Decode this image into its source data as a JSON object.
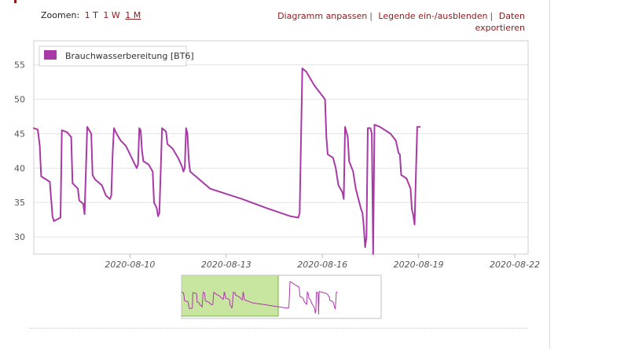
{
  "zoom": {
    "label": "Zoomen:",
    "options": [
      {
        "label": "1 T",
        "active": false
      },
      {
        "label": "1 W",
        "active": false
      },
      {
        "label": "1 M",
        "active": true
      }
    ]
  },
  "actions": {
    "customize": "Diagramm anpassen",
    "toggle_legend": "Legende ein-/ausblenden",
    "export_line1": "Daten",
    "export_line2": "exportieren",
    "separator": "|"
  },
  "colors": {
    "series": "#a83aa8",
    "navigator_mask": "#c8e6a0",
    "navigator_mask_border": "#7cb342",
    "link": "#8b1a1a"
  },
  "chart_data": {
    "type": "line",
    "legend": {
      "entries": [
        "Brauchwasserbereitung [BT6]"
      ],
      "placement": "top-left"
    },
    "xlim": [
      "2020-08-07",
      "2020-08-22 10:00"
    ],
    "ylim": [
      27.5,
      58.5
    ],
    "x_ticks": [
      "2020-08-10",
      "2020-08-13",
      "2020-08-16",
      "2020-08-19",
      "2020-08-22"
    ],
    "y_ticks": [
      30,
      35,
      40,
      45,
      50,
      55
    ],
    "grid": {
      "horizontal": true,
      "vertical": false
    },
    "series": [
      {
        "name": "Brauchwasserbereitung [BT6]",
        "points": [
          [
            "2020-08-07 00:00",
            45.8
          ],
          [
            "2020-08-07 03:00",
            45.6
          ],
          [
            "2020-08-07 04:30",
            43.2
          ],
          [
            "2020-08-07 05:30",
            38.8
          ],
          [
            "2020-08-07 12:00",
            38.0
          ],
          [
            "2020-08-07 13:00",
            35.5
          ],
          [
            "2020-08-07 14:00",
            33.0
          ],
          [
            "2020-08-07 15:00",
            32.3
          ],
          [
            "2020-08-07 20:00",
            32.8
          ],
          [
            "2020-08-07 21:00",
            45.5
          ],
          [
            "2020-08-08 01:00",
            45.2
          ],
          [
            "2020-08-08 04:00",
            44.5
          ],
          [
            "2020-08-08 05:00",
            37.8
          ],
          [
            "2020-08-08 09:00",
            37.0
          ],
          [
            "2020-08-08 10:00",
            35.3
          ],
          [
            "2020-08-08 13:00",
            34.8
          ],
          [
            "2020-08-08 14:00",
            33.3
          ],
          [
            "2020-08-08 16:00",
            46.0
          ],
          [
            "2020-08-08 19:00",
            45.0
          ],
          [
            "2020-08-08 20:00",
            39.0
          ],
          [
            "2020-08-08 22:00",
            38.3
          ],
          [
            "2020-08-09 00:00",
            38.0
          ],
          [
            "2020-08-09 03:00",
            37.5
          ],
          [
            "2020-08-09 06:00",
            36.0
          ],
          [
            "2020-08-09 09:00",
            35.5
          ],
          [
            "2020-08-09 10:00",
            36.0
          ],
          [
            "2020-08-09 11:00",
            42.0
          ],
          [
            "2020-08-09 12:00",
            45.8
          ],
          [
            "2020-08-09 14:00",
            45.0
          ],
          [
            "2020-08-09 17:00",
            44.0
          ],
          [
            "2020-08-09 21:00",
            43.2
          ],
          [
            "2020-08-10 03:00",
            40.8
          ],
          [
            "2020-08-10 05:00",
            40.0
          ],
          [
            "2020-08-10 06:00",
            40.5
          ],
          [
            "2020-08-10 07:00",
            45.8
          ],
          [
            "2020-08-10 08:00",
            45.5
          ],
          [
            "2020-08-10 09:00",
            42.5
          ],
          [
            "2020-08-10 10:00",
            41.0
          ],
          [
            "2020-08-10 14:00",
            40.5
          ],
          [
            "2020-08-10 17:00",
            39.5
          ],
          [
            "2020-08-10 18:00",
            35.0
          ],
          [
            "2020-08-10 20:00",
            34.2
          ],
          [
            "2020-08-10 21:00",
            33.0
          ],
          [
            "2020-08-10 22:00",
            33.5
          ],
          [
            "2020-08-11 00:00",
            45.8
          ],
          [
            "2020-08-11 03:00",
            45.3
          ],
          [
            "2020-08-11 04:00",
            43.5
          ],
          [
            "2020-08-11 08:00",
            42.8
          ],
          [
            "2020-08-11 12:00",
            41.5
          ],
          [
            "2020-08-11 15:00",
            40.2
          ],
          [
            "2020-08-11 16:00",
            39.5
          ],
          [
            "2020-08-11 17:00",
            40.0
          ],
          [
            "2020-08-11 18:00",
            45.8
          ],
          [
            "2020-08-11 19:00",
            45.0
          ],
          [
            "2020-08-11 20:00",
            41.2
          ],
          [
            "2020-08-11 21:00",
            39.5
          ],
          [
            "2020-08-12 12:00",
            37.0
          ],
          [
            "2020-08-13 12:00",
            35.5
          ],
          [
            "2020-08-14 06:00",
            34.2
          ],
          [
            "2020-08-15 00:00",
            33.0
          ],
          [
            "2020-08-15 06:00",
            32.8
          ],
          [
            "2020-08-15 07:00",
            33.5
          ],
          [
            "2020-08-15 09:00",
            54.5
          ],
          [
            "2020-08-15 12:00",
            54.0
          ],
          [
            "2020-08-15 18:00",
            52.0
          ],
          [
            "2020-08-16 02:00",
            50.0
          ],
          [
            "2020-08-16 03:00",
            44.5
          ],
          [
            "2020-08-16 04:00",
            42.0
          ],
          [
            "2020-08-16 08:00",
            41.5
          ],
          [
            "2020-08-16 10:00",
            40.0
          ],
          [
            "2020-08-16 12:00",
            37.5
          ],
          [
            "2020-08-16 15:00",
            36.5
          ],
          [
            "2020-08-16 16:00",
            35.5
          ],
          [
            "2020-08-16 17:00",
            46.0
          ],
          [
            "2020-08-16 19:00",
            44.5
          ],
          [
            "2020-08-16 20:00",
            41.0
          ],
          [
            "2020-08-16 23:00",
            39.5
          ],
          [
            "2020-08-17 01:00",
            37.0
          ],
          [
            "2020-08-17 05:00",
            34.0
          ],
          [
            "2020-08-17 06:00",
            33.5
          ],
          [
            "2020-08-17 07:00",
            31.5
          ],
          [
            "2020-08-17 08:00",
            28.5
          ],
          [
            "2020-08-17 09:00",
            30.0
          ],
          [
            "2020-08-17 10:00",
            45.8
          ],
          [
            "2020-08-17 12:00",
            45.8
          ],
          [
            "2020-08-17 13:00",
            45.0
          ],
          [
            "2020-08-17 14:00",
            27.5
          ],
          [
            "2020-08-17 15:00",
            46.3
          ],
          [
            "2020-08-17 19:00",
            46.0
          ],
          [
            "2020-08-18 03:00",
            45.0
          ],
          [
            "2020-08-18 07:00",
            44.0
          ],
          [
            "2020-08-18 09:00",
            42.2
          ],
          [
            "2020-08-18 10:00",
            42.0
          ],
          [
            "2020-08-18 11:00",
            39.0
          ],
          [
            "2020-08-18 15:00",
            38.5
          ],
          [
            "2020-08-18 18:00",
            37.0
          ],
          [
            "2020-08-18 19:00",
            34.0
          ],
          [
            "2020-08-18 20:00",
            33.2
          ],
          [
            "2020-08-18 21:00",
            31.8
          ],
          [
            "2020-08-18 22:00",
            39.0
          ],
          [
            "2020-08-18 23:00",
            46.0
          ],
          [
            "2020-08-19 01:00",
            46.0
          ]
        ]
      }
    ]
  }
}
